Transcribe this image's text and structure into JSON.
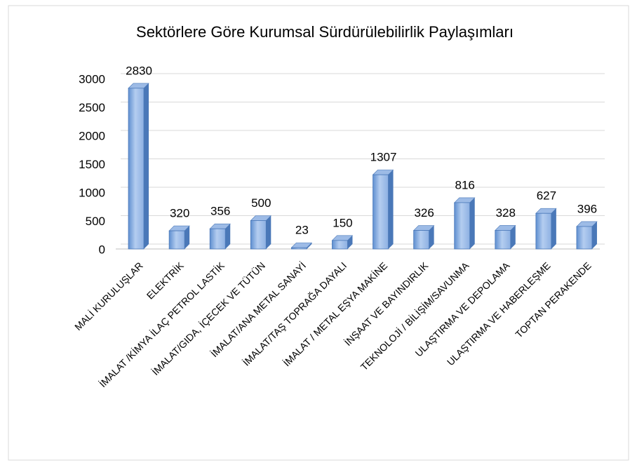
{
  "chart_data": {
    "type": "bar",
    "title": "Sektörlere Göre Kurumsal Sürdürülebilirlik Paylaşımları",
    "categories": [
      "MALİ KURULUŞLAR",
      "ELEKTRİK",
      "İMALAT /KİMYA İLAÇ PETROL LASTİK",
      "İMALAT/GIDA, İÇECEK VE TÜTÜN",
      "İMALAT/ANA METAL SANAYİ",
      "İMALAT/TAŞ TOPRAĞA DAYALI",
      "İMALAT / METAL EŞYA MAKİNE",
      "İNŞAAT VE BAYINDIRLIK",
      "TEKNOLOJİ / BİLİŞİM/SAVUNMA",
      "ULAŞTIRMA VE DEPOLAMA",
      "ULAŞTIRMA VE HABERLEŞME",
      "TOPTAN PERAKENDE"
    ],
    "values": [
      2830,
      320,
      356,
      500,
      23,
      150,
      1307,
      326,
      816,
      328,
      627,
      396
    ],
    "color": "#7fa6dc",
    "ylim": [
      0,
      3000
    ],
    "yticks": [
      0,
      500,
      1000,
      1500,
      2000,
      2500,
      3000
    ],
    "grid": true
  }
}
